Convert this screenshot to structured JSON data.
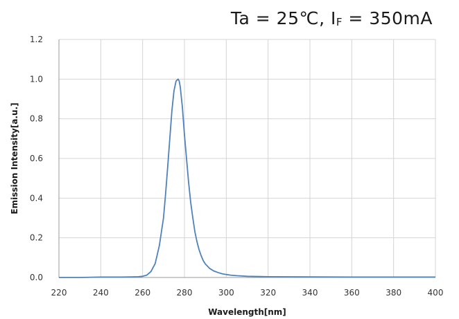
{
  "title": {
    "prefix": "Ta  =  25℃,  I",
    "subscript": "F",
    "suffix": "  =  350mA"
  },
  "chart_data": {
    "type": "line",
    "title": "Ta = 25℃, IF = 350mA",
    "xlabel": "Wavelength[nm]",
    "ylabel": "Emission Intensity[a.u.]",
    "xlim": [
      220,
      400
    ],
    "ylim": [
      0,
      1.2
    ],
    "xticks": [
      220,
      240,
      260,
      280,
      300,
      320,
      340,
      360,
      380,
      400
    ],
    "yticks": [
      0.0,
      0.2,
      0.4,
      0.6,
      0.8,
      1.0,
      1.2
    ],
    "ytick_labels": [
      "0.0",
      "0.2",
      "0.4",
      "0.6",
      "0.8",
      "1.0",
      "1.2"
    ],
    "grid": true,
    "line_color": "#4f81bd",
    "series": [
      {
        "x": [
          220,
          230,
          240,
          250,
          255,
          258,
          260,
          262,
          264,
          266,
          268,
          270,
          271,
          272,
          273,
          274,
          275,
          276,
          277,
          277.5,
          278,
          279,
          280,
          281,
          282,
          283,
          284,
          285,
          286,
          287,
          288,
          289,
          290,
          292,
          294,
          296,
          298,
          300,
          302,
          305,
          310,
          320,
          340,
          360,
          380,
          400
        ],
        "y": [
          0.0,
          0.0,
          0.002,
          0.002,
          0.003,
          0.004,
          0.006,
          0.012,
          0.03,
          0.07,
          0.16,
          0.3,
          0.42,
          0.56,
          0.7,
          0.84,
          0.94,
          0.99,
          1.0,
          0.99,
          0.96,
          0.86,
          0.72,
          0.6,
          0.48,
          0.38,
          0.3,
          0.23,
          0.18,
          0.14,
          0.11,
          0.085,
          0.068,
          0.046,
          0.033,
          0.025,
          0.019,
          0.015,
          0.012,
          0.009,
          0.006,
          0.004,
          0.003,
          0.002,
          0.002,
          0.002
        ]
      }
    ]
  }
}
